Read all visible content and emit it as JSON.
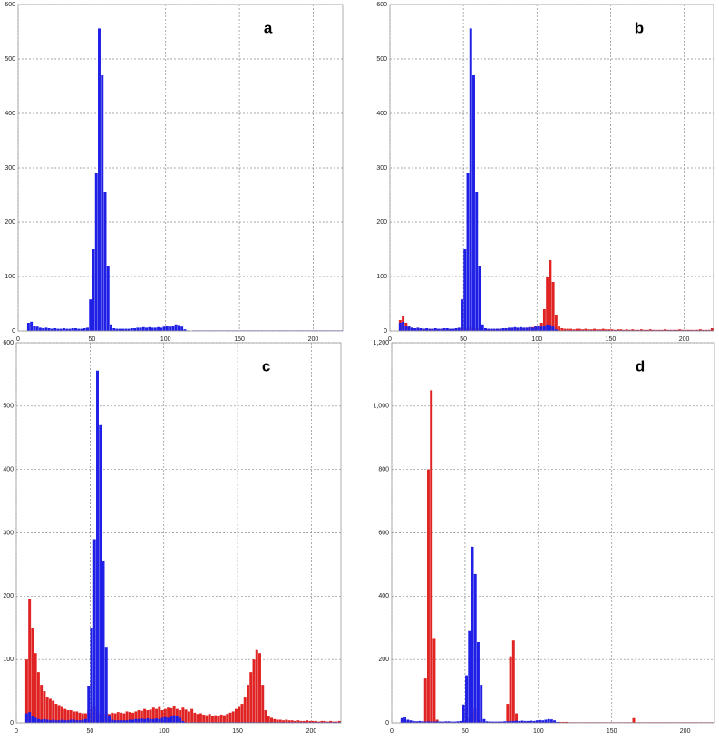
{
  "chart_data": [
    {
      "type": "histogram",
      "title": "a",
      "bins": [
        0,
        2,
        4,
        6,
        8,
        10,
        12,
        14,
        16,
        18,
        20,
        22,
        24,
        26,
        28,
        30,
        32,
        34,
        36,
        38,
        40,
        42,
        44,
        46,
        48,
        50,
        52,
        54,
        56,
        58,
        60,
        62,
        64,
        66,
        68,
        70,
        72,
        74,
        76,
        78,
        80,
        82,
        84,
        86,
        88,
        90,
        92,
        94,
        96,
        98,
        100,
        102,
        104,
        106,
        108,
        110,
        112,
        114,
        116,
        118,
        120,
        122,
        124,
        126,
        128,
        130,
        132,
        134,
        136,
        138,
        140,
        142,
        144,
        146,
        148,
        150,
        152,
        154,
        156,
        158,
        160,
        162,
        164,
        166,
        168,
        170,
        172,
        174,
        176,
        178,
        180,
        182,
        184,
        186,
        188,
        190,
        192,
        194,
        196,
        198,
        200,
        202,
        204,
        206,
        208,
        210,
        212,
        214,
        216,
        218,
        220
      ],
      "series": [
        {
          "color": "#1f1fe6",
          "values": [
            0,
            0,
            0,
            15,
            17,
            10,
            8,
            6,
            5,
            6,
            5,
            4,
            5,
            4,
            4,
            5,
            4,
            4,
            5,
            5,
            4,
            4,
            5,
            6,
            58,
            150,
            290,
            556,
            470,
            255,
            120,
            12,
            5,
            4,
            4,
            4,
            4,
            4,
            5,
            5,
            6,
            6,
            7,
            6,
            7,
            6,
            6,
            7,
            6,
            8,
            9,
            8,
            10,
            12,
            11,
            8,
            3,
            1,
            0,
            1,
            1,
            1,
            1,
            1,
            1,
            1,
            1,
            1,
            1,
            1,
            1,
            1,
            1,
            1,
            1,
            1,
            1,
            1,
            1,
            1,
            1,
            1,
            1,
            1,
            1,
            1,
            1,
            1,
            1,
            1,
            1,
            1,
            1,
            1,
            1,
            1,
            1,
            1,
            1,
            1,
            1,
            1,
            1,
            1,
            1,
            1,
            1,
            1,
            1,
            1
          ]
        }
      ],
      "xlim": [
        0,
        220
      ],
      "xticks": [
        0,
        50,
        100,
        150,
        200
      ],
      "ylim": [
        0,
        600
      ],
      "yticks": [
        0,
        100,
        200,
        300,
        400,
        500,
        600
      ],
      "grid": true
    },
    {
      "type": "histogram",
      "title": "b",
      "bins": [
        0,
        2,
        4,
        6,
        8,
        10,
        12,
        14,
        16,
        18,
        20,
        22,
        24,
        26,
        28,
        30,
        32,
        34,
        36,
        38,
        40,
        42,
        44,
        46,
        48,
        50,
        52,
        54,
        56,
        58,
        60,
        62,
        64,
        66,
        68,
        70,
        72,
        74,
        76,
        78,
        80,
        82,
        84,
        86,
        88,
        90,
        92,
        94,
        96,
        98,
        100,
        102,
        104,
        106,
        108,
        110,
        112,
        114,
        116,
        118,
        120,
        122,
        124,
        126,
        128,
        130,
        132,
        134,
        136,
        138,
        140,
        142,
        144,
        146,
        148,
        150,
        152,
        154,
        156,
        158,
        160,
        162,
        164,
        166,
        168,
        170,
        172,
        174,
        176,
        178,
        180,
        182,
        184,
        186,
        188,
        190,
        192,
        194,
        196,
        198,
        200,
        202,
        204,
        206,
        208,
        210,
        212,
        214,
        216,
        218,
        220
      ],
      "series": [
        {
          "color": "#e02424",
          "values": [
            0,
            0,
            0,
            20,
            28,
            15,
            8,
            6,
            5,
            4,
            4,
            4,
            3,
            4,
            3,
            4,
            3,
            4,
            3,
            4,
            3,
            4,
            3,
            4,
            5,
            5,
            6,
            6,
            6,
            5,
            4,
            4,
            4,
            3,
            4,
            3,
            4,
            4,
            5,
            4,
            4,
            5,
            4,
            5,
            4,
            5,
            6,
            6,
            7,
            8,
            10,
            15,
            40,
            100,
            130,
            90,
            30,
            8,
            5,
            4,
            4,
            4,
            3,
            4,
            4,
            3,
            4,
            3,
            3,
            4,
            3,
            3,
            4,
            3,
            3,
            3,
            2,
            3,
            3,
            2,
            3,
            2,
            3,
            2,
            2,
            3,
            2,
            2,
            3,
            2,
            2,
            2,
            2,
            3,
            2,
            2,
            2,
            2,
            3,
            2,
            2,
            2,
            2,
            2,
            2,
            3,
            2,
            2,
            2,
            5
          ]
        },
        {
          "color": "#1f1fe6",
          "values": [
            0,
            0,
            0,
            15,
            17,
            10,
            8,
            6,
            5,
            6,
            5,
            4,
            5,
            4,
            4,
            5,
            4,
            4,
            5,
            5,
            4,
            4,
            5,
            6,
            58,
            150,
            290,
            556,
            470,
            255,
            120,
            12,
            5,
            4,
            4,
            4,
            4,
            4,
            5,
            5,
            6,
            6,
            7,
            6,
            7,
            6,
            6,
            7,
            6,
            8,
            9,
            8,
            10,
            12,
            11,
            8,
            3,
            1,
            0,
            1,
            1,
            1,
            1,
            1,
            1,
            1,
            1,
            1,
            1,
            1,
            1,
            1,
            1,
            1,
            1,
            1,
            1,
            1,
            1,
            1,
            1,
            1,
            1,
            1,
            1,
            1,
            1,
            1,
            1,
            1,
            1,
            1,
            1,
            1,
            1,
            1,
            1,
            1,
            1,
            1,
            1,
            1,
            1,
            1,
            1,
            1,
            1,
            1,
            1,
            1
          ]
        }
      ],
      "xlim": [
        0,
        220
      ],
      "xticks": [
        0,
        50,
        100,
        150,
        200
      ],
      "ylim": [
        0,
        600
      ],
      "yticks": [
        0,
        100,
        200,
        300,
        400,
        500,
        600
      ],
      "grid": true
    },
    {
      "type": "histogram",
      "title": "c",
      "bins": [
        0,
        2,
        4,
        6,
        8,
        10,
        12,
        14,
        16,
        18,
        20,
        22,
        24,
        26,
        28,
        30,
        32,
        34,
        36,
        38,
        40,
        42,
        44,
        46,
        48,
        50,
        52,
        54,
        56,
        58,
        60,
        62,
        64,
        66,
        68,
        70,
        72,
        74,
        76,
        78,
        80,
        82,
        84,
        86,
        88,
        90,
        92,
        94,
        96,
        98,
        100,
        102,
        104,
        106,
        108,
        110,
        112,
        114,
        116,
        118,
        120,
        122,
        124,
        126,
        128,
        130,
        132,
        134,
        136,
        138,
        140,
        142,
        144,
        146,
        148,
        150,
        152,
        154,
        156,
        158,
        160,
        162,
        164,
        166,
        168,
        170,
        172,
        174,
        176,
        178,
        180,
        182,
        184,
        186,
        188,
        190,
        192,
        194,
        196,
        198,
        200,
        202,
        204,
        206,
        208,
        210,
        212,
        214,
        216,
        218,
        220
      ],
      "series": [
        {
          "color": "#e02424",
          "values": [
            0,
            0,
            0,
            100,
            195,
            150,
            110,
            80,
            60,
            50,
            40,
            38,
            35,
            30,
            28,
            25,
            22,
            20,
            20,
            18,
            18,
            16,
            15,
            15,
            20,
            20,
            25,
            20,
            15,
            12,
            15,
            14,
            16,
            15,
            17,
            16,
            15,
            18,
            17,
            16,
            18,
            20,
            19,
            22,
            20,
            21,
            24,
            22,
            25,
            20,
            22,
            24,
            23,
            26,
            22,
            20,
            24,
            21,
            18,
            22,
            16,
            14,
            15,
            13,
            12,
            14,
            11,
            12,
            10,
            13,
            12,
            14,
            16,
            18,
            22,
            25,
            30,
            40,
            60,
            80,
            100,
            115,
            110,
            60,
            20,
            10,
            8,
            6,
            5,
            5,
            4,
            5,
            4,
            4,
            3,
            4,
            3,
            3,
            4,
            3,
            3,
            3,
            2,
            3,
            3,
            2,
            3,
            2,
            2,
            3
          ]
        },
        {
          "color": "#1f1fe6",
          "values": [
            0,
            0,
            0,
            15,
            17,
            10,
            8,
            6,
            5,
            6,
            5,
            4,
            5,
            4,
            4,
            5,
            4,
            4,
            5,
            5,
            4,
            4,
            5,
            6,
            58,
            150,
            290,
            556,
            470,
            255,
            120,
            12,
            5,
            4,
            4,
            4,
            4,
            4,
            5,
            5,
            6,
            6,
            7,
            6,
            7,
            6,
            6,
            7,
            6,
            8,
            9,
            8,
            10,
            12,
            11,
            8,
            3,
            1,
            0,
            1,
            1,
            1,
            1,
            1,
            1,
            1,
            1,
            1,
            1,
            1,
            1,
            1,
            1,
            1,
            1,
            1,
            1,
            1,
            1,
            1,
            1,
            1,
            1,
            1,
            1,
            1,
            1,
            1,
            1,
            1,
            1,
            1,
            1,
            1,
            1,
            1,
            1,
            1,
            1,
            1,
            1,
            1,
            1,
            1,
            1,
            1,
            1,
            1,
            1,
            1
          ]
        }
      ],
      "xlim": [
        0,
        220
      ],
      "xticks": [
        0,
        50,
        100,
        150,
        200
      ],
      "ylim": [
        0,
        600
      ],
      "yticks": [
        0,
        100,
        200,
        300,
        400,
        500,
        600
      ],
      "grid": true
    },
    {
      "type": "histogram",
      "title": "d",
      "bins": [
        0,
        2,
        4,
        6,
        8,
        10,
        12,
        14,
        16,
        18,
        20,
        22,
        24,
        26,
        28,
        30,
        32,
        34,
        36,
        38,
        40,
        42,
        44,
        46,
        48,
        50,
        52,
        54,
        56,
        58,
        60,
        62,
        64,
        66,
        68,
        70,
        72,
        74,
        76,
        78,
        80,
        82,
        84,
        86,
        88,
        90,
        92,
        94,
        96,
        98,
        100,
        102,
        104,
        106,
        108,
        110,
        112,
        114,
        116,
        118,
        120,
        122,
        124,
        126,
        128,
        130,
        132,
        134,
        136,
        138,
        140,
        142,
        144,
        146,
        148,
        150,
        152,
        154,
        156,
        158,
        160,
        162,
        164,
        166,
        168,
        170,
        172,
        174,
        176,
        178,
        180,
        182,
        184,
        186,
        188,
        190,
        192,
        194,
        196,
        198,
        200,
        202,
        204,
        206,
        208,
        210,
        212,
        214,
        216,
        218,
        220
      ],
      "series": [
        {
          "color": "#e02424",
          "values": [
            0,
            0,
            0,
            8,
            10,
            6,
            4,
            3,
            3,
            3,
            3,
            140,
            800,
            1050,
            265,
            10,
            4,
            3,
            3,
            3,
            3,
            3,
            3,
            3,
            5,
            8,
            15,
            40,
            45,
            10,
            4,
            3,
            3,
            3,
            3,
            3,
            3,
            3,
            3,
            60,
            210,
            260,
            30,
            4,
            3,
            3,
            3,
            3,
            3,
            3,
            3,
            3,
            3,
            3,
            3,
            3,
            3,
            3,
            3,
            3,
            2,
            2,
            2,
            2,
            2,
            2,
            2,
            2,
            2,
            2,
            2,
            2,
            2,
            2,
            2,
            2,
            2,
            2,
            2,
            2,
            2,
            2,
            15,
            2,
            2,
            2,
            2,
            2,
            2,
            2,
            2,
            2,
            2,
            2,
            2,
            2,
            2,
            2,
            2,
            2,
            2,
            2,
            2,
            2,
            2,
            2,
            2,
            2,
            2,
            2
          ]
        },
        {
          "color": "#1f1fe6",
          "values": [
            0,
            0,
            0,
            15,
            17,
            10,
            8,
            6,
            5,
            6,
            5,
            4,
            5,
            4,
            4,
            5,
            4,
            4,
            5,
            5,
            4,
            4,
            5,
            6,
            58,
            150,
            290,
            556,
            470,
            255,
            120,
            12,
            5,
            4,
            4,
            4,
            4,
            4,
            5,
            5,
            6,
            6,
            7,
            6,
            7,
            6,
            6,
            7,
            6,
            8,
            9,
            8,
            10,
            12,
            11,
            8,
            3,
            1,
            0,
            1,
            1,
            1,
            1,
            1,
            1,
            1,
            1,
            1,
            1,
            1,
            1,
            1,
            1,
            1,
            1,
            1,
            1,
            1,
            1,
            1,
            1,
            1,
            1,
            1,
            1,
            1,
            1,
            1,
            1,
            1,
            1,
            1,
            1,
            1,
            1,
            1,
            1,
            1,
            1,
            1,
            1,
            1,
            1,
            1,
            1,
            1,
            1,
            1,
            1,
            1
          ]
        }
      ],
      "xlim": [
        0,
        220
      ],
      "xticks": [
        0,
        50,
        100,
        150,
        200
      ],
      "ylim": [
        0,
        1200
      ],
      "yticks": [
        0,
        200,
        400,
        600,
        800,
        {
          "value": 1000,
          "label": "1,000"
        },
        {
          "value": 1200,
          "label": "1,200"
        }
      ],
      "grid": true
    }
  ]
}
